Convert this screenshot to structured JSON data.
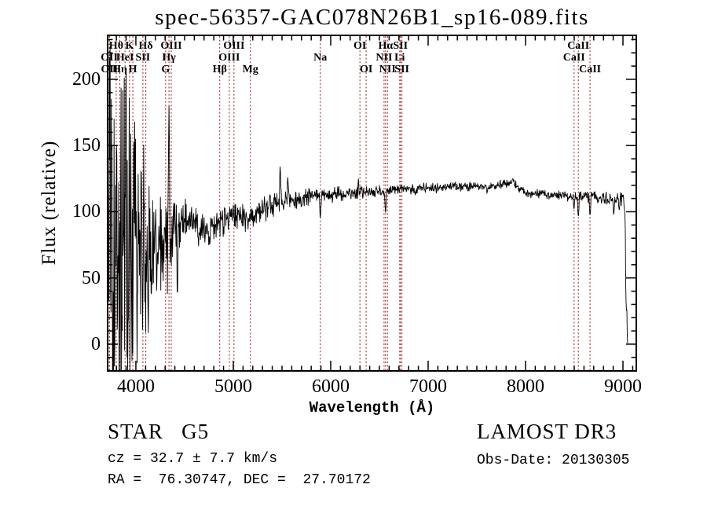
{
  "title": "spec-56357-GAC078N26B1_sp16-089.fits",
  "annotations": {
    "class_label": "STAR   G5",
    "survey": "LAMOST DR3",
    "cz": "cz = 32.7 ± 7.7 km/s",
    "obs_date": "Obs-Date: 20130305",
    "radec": "RA =  76.30747, DEC =  27.70172"
  },
  "chart_data": {
    "type": "line",
    "title": "spec-56357-GAC078N26B1_sp16-089.fits",
    "xlabel": "Wavelength (Å)",
    "ylabel": "Flux (relative)",
    "xlim": [
      3710,
      9137
    ],
    "ylim": [
      -20.2,
      233.2
    ],
    "x_major_ticks": [
      4000,
      5000,
      6000,
      7000,
      8000,
      9000
    ],
    "x_minor_step": 100,
    "y_major_ticks": [
      0,
      50,
      100,
      150,
      200
    ],
    "y_minor_step": 10,
    "grid": false,
    "legend": false,
    "line_color": "#000000",
    "frame_color": "#000000",
    "marker_line_color": "#9e3232",
    "spectral_lines": [
      {
        "name": "Hθ",
        "wavelength": 3798,
        "row": 1
      },
      {
        "name": "OII",
        "wavelength": 3727,
        "row": 2
      },
      {
        "name": "OII",
        "wavelength": 3729,
        "row": 3
      },
      {
        "name": "K",
        "wavelength": 3934,
        "row": 1
      },
      {
        "name": "HeI",
        "wavelength": 3889,
        "row": 2
      },
      {
        "name": "Hη",
        "wavelength": 3835,
        "row": 3
      },
      {
        "name": "H",
        "wavelength": 3969,
        "row": 3
      },
      {
        "name": "SII",
        "wavelength": 4072,
        "row": 2
      },
      {
        "name": "Hδ",
        "wavelength": 4102,
        "row": 1
      },
      {
        "name": "G",
        "wavelength": 4305,
        "row": 3
      },
      {
        "name": "Hγ",
        "wavelength": 4340,
        "row": 2
      },
      {
        "name": "OIII",
        "wavelength": 4363,
        "row": 1
      },
      {
        "name": "Hβ",
        "wavelength": 4861,
        "row": 3
      },
      {
        "name": "OIII",
        "wavelength": 4959,
        "row": 2
      },
      {
        "name": "OIII",
        "wavelength": 5007,
        "row": 1
      },
      {
        "name": "Mg",
        "wavelength": 5175,
        "row": 3
      },
      {
        "name": "Na",
        "wavelength": 5893,
        "row": 2
      },
      {
        "name": "OI",
        "wavelength": 6300,
        "row": 1
      },
      {
        "name": "OI",
        "wavelength": 6364,
        "row": 3
      },
      {
        "name": "NII",
        "wavelength": 6548,
        "row": 2
      },
      {
        "name": "Hα",
        "wavelength": 6563,
        "row": 1
      },
      {
        "name": "NII",
        "wavelength": 6583,
        "row": 3
      },
      {
        "name": "Li",
        "wavelength": 6708,
        "row": 2
      },
      {
        "name": "SII",
        "wavelength": 6716,
        "row": 1
      },
      {
        "name": "SII",
        "wavelength": 6731,
        "row": 3
      },
      {
        "name": "CaII",
        "wavelength": 8498,
        "row": 2
      },
      {
        "name": "CaII",
        "wavelength": 8542,
        "row": 1
      },
      {
        "name": "CaII",
        "wavelength": 8662,
        "row": 3
      }
    ],
    "spectrum": {
      "wavelength_start": 3712,
      "wavelength_end": 9048,
      "step": 4,
      "noise_seed": 12345,
      "noise_multiplier": 2.2,
      "continuum": [
        [
          3710,
          60
        ],
        [
          3760,
          68
        ],
        [
          3810,
          62
        ],
        [
          3860,
          66
        ],
        [
          3910,
          70
        ],
        [
          3960,
          72
        ],
        [
          4010,
          73
        ],
        [
          4060,
          70
        ],
        [
          4110,
          72
        ],
        [
          4160,
          73
        ],
        [
          4210,
          70
        ],
        [
          4260,
          69
        ],
        [
          4310,
          71
        ],
        [
          4360,
          80
        ],
        [
          4410,
          90
        ],
        [
          4460,
          94
        ],
        [
          4510,
          93
        ],
        [
          4560,
          94
        ],
        [
          4610,
          88
        ],
        [
          4660,
          84
        ],
        [
          4710,
          83
        ],
        [
          4760,
          86
        ],
        [
          4810,
          89
        ],
        [
          4860,
          91
        ],
        [
          4910,
          94
        ],
        [
          4960,
          96
        ],
        [
          5010,
          98
        ],
        [
          5060,
          97
        ],
        [
          5110,
          95
        ],
        [
          5160,
          94
        ],
        [
          5210,
          95
        ],
        [
          5260,
          100
        ],
        [
          5310,
          103
        ],
        [
          5360,
          104
        ],
        [
          5410,
          105
        ],
        [
          5460,
          107
        ],
        [
          5510,
          108
        ],
        [
          5610,
          109
        ],
        [
          5710,
          110
        ],
        [
          5810,
          112
        ],
        [
          5910,
          112
        ],
        [
          6010,
          113
        ],
        [
          6110,
          114
        ],
        [
          6210,
          114
        ],
        [
          6310,
          115
        ],
        [
          6410,
          115
        ],
        [
          6510,
          116
        ],
        [
          6610,
          116
        ],
        [
          6710,
          117
        ],
        [
          6810,
          117
        ],
        [
          6910,
          118
        ],
        [
          7010,
          118
        ],
        [
          7110,
          118
        ],
        [
          7210,
          119
        ],
        [
          7310,
          119
        ],
        [
          7410,
          119
        ],
        [
          7510,
          119
        ],
        [
          7610,
          119
        ],
        [
          7710,
          120
        ],
        [
          7810,
          121
        ],
        [
          7870,
          122
        ],
        [
          7930,
          118
        ],
        [
          7990,
          116
        ],
        [
          8050,
          114
        ],
        [
          8110,
          113
        ],
        [
          8210,
          113
        ],
        [
          8310,
          112
        ],
        [
          8410,
          112
        ],
        [
          8510,
          111
        ],
        [
          8610,
          111
        ],
        [
          8710,
          111
        ],
        [
          8810,
          110
        ],
        [
          8910,
          109
        ],
        [
          8960,
          110
        ],
        [
          9010,
          109
        ],
        [
          9022,
          102
        ],
        [
          9028,
          45
        ],
        [
          9034,
          25
        ],
        [
          9040,
          28
        ],
        [
          9044,
          6
        ],
        [
          9048,
          2
        ]
      ],
      "noise_sigma": [
        [
          3710,
          85
        ],
        [
          3800,
          85
        ],
        [
          3900,
          72
        ],
        [
          3960,
          62
        ],
        [
          4000,
          50
        ],
        [
          4060,
          42
        ],
        [
          4120,
          34
        ],
        [
          4200,
          27
        ],
        [
          4300,
          20
        ],
        [
          4400,
          13
        ],
        [
          4500,
          9.5
        ],
        [
          4650,
          8
        ],
        [
          4800,
          7
        ],
        [
          5000,
          6
        ],
        [
          5200,
          5.5
        ],
        [
          5400,
          5
        ],
        [
          5600,
          4.2
        ],
        [
          5800,
          3.4
        ],
        [
          6000,
          3
        ],
        [
          6300,
          2.6
        ],
        [
          6600,
          2.2
        ],
        [
          7000,
          2
        ],
        [
          7500,
          1.9
        ],
        [
          8000,
          1.9
        ],
        [
          8400,
          2.2
        ],
        [
          8800,
          2.6
        ],
        [
          9000,
          2.6
        ],
        [
          9026,
          4
        ],
        [
          9048,
          2
        ]
      ],
      "features": [
        [
          4340,
          180,
          10
        ],
        [
          4426,
          33,
          9
        ],
        [
          5481,
          136,
          9
        ],
        [
          5560,
          126,
          8
        ],
        [
          5893,
          94,
          9
        ],
        [
          6284,
          125,
          7
        ],
        [
          6563,
          98,
          9
        ],
        [
          6869,
          112,
          8
        ],
        [
          7605,
          114,
          10
        ],
        [
          7870,
          125,
          12
        ],
        [
          8498,
          101,
          8
        ],
        [
          8542,
          95,
          9
        ],
        [
          8662,
          96,
          9
        ],
        [
          8905,
          97,
          9
        ],
        [
          8962,
          100,
          8
        ]
      ]
    }
  }
}
